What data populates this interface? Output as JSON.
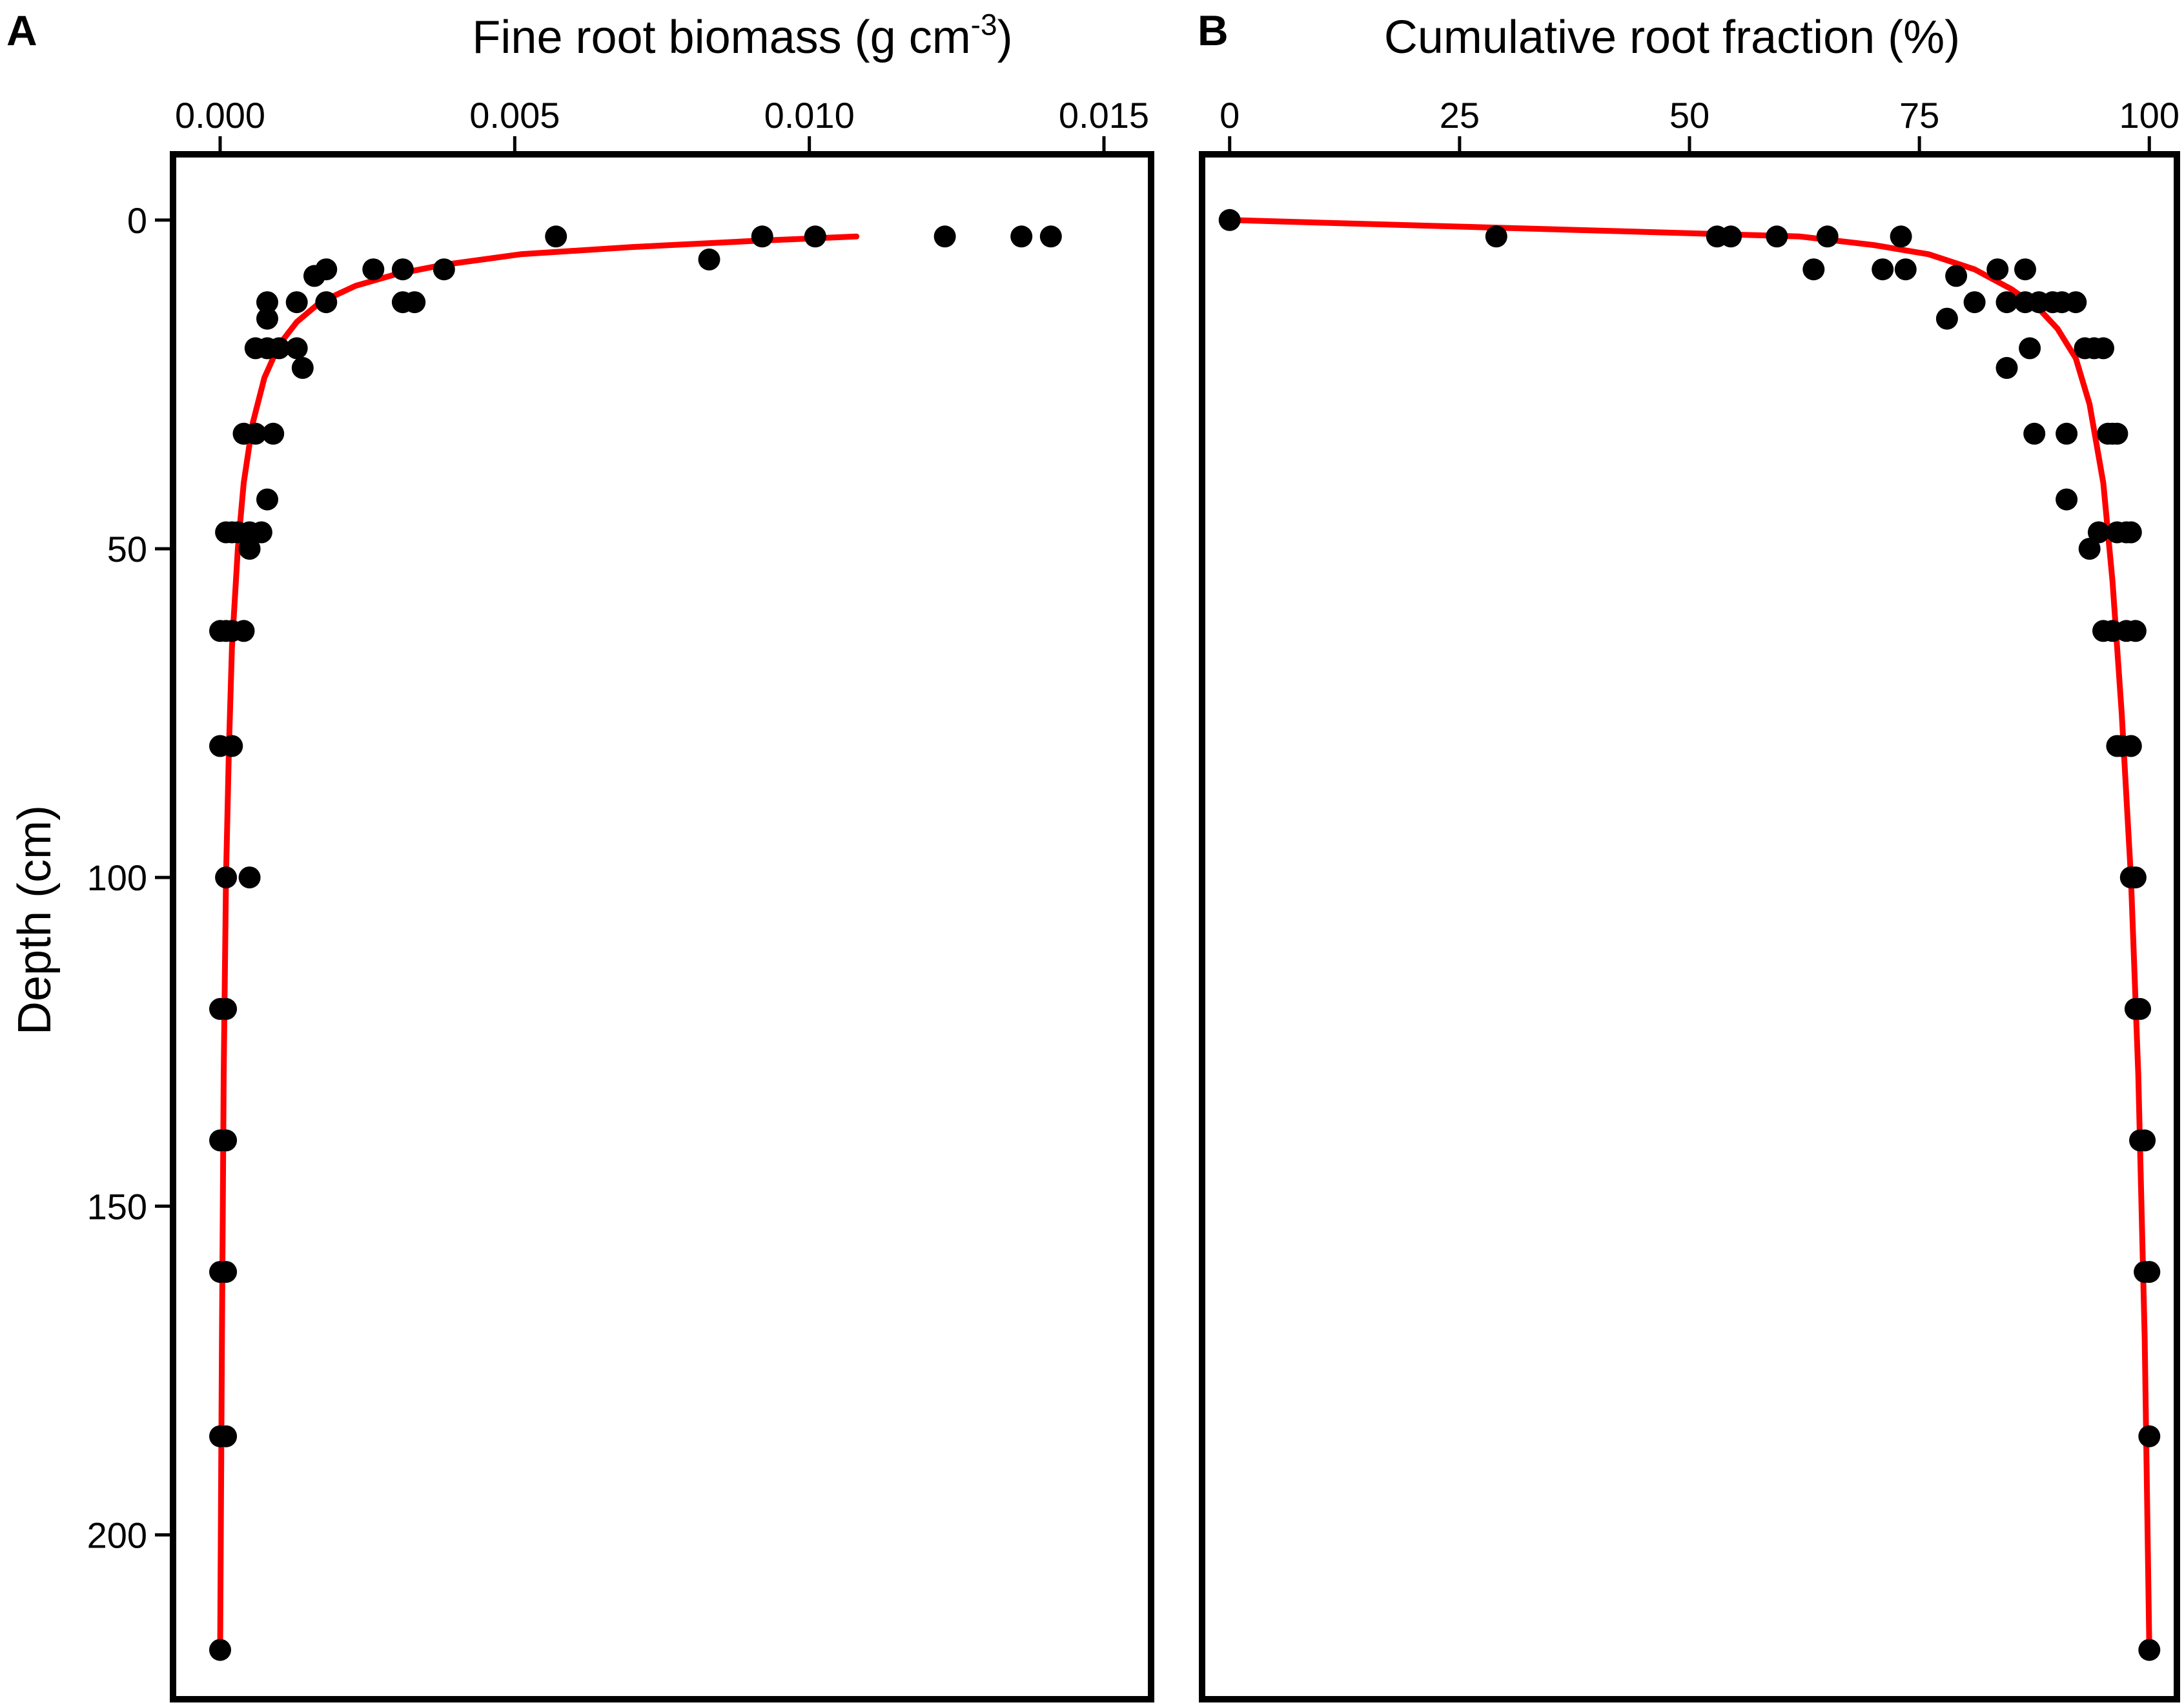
{
  "chart_data": [
    {
      "panel_label": "A",
      "type": "scatter",
      "xlabel": "Fine root biomass (g cm-3)",
      "xlabel_main": "Fine root biomass (g cm",
      "xlabel_sup": "-3",
      "xlabel_close": ")",
      "ylabel": "Depth (cm)",
      "xlim": [
        -0.0008,
        0.0158
      ],
      "ylim": [
        -10,
        225
      ],
      "y_reversed": true,
      "x_axis_position": "top",
      "x_ticks": [
        0,
        0.005,
        0.01,
        0.015
      ],
      "x_tick_labels": [
        "0.000",
        "0.005",
        "0.010",
        "0.015"
      ],
      "y_ticks": [
        0,
        50,
        100,
        150,
        200
      ],
      "y_tick_labels": [
        "0",
        "50",
        "100",
        "150",
        "200"
      ],
      "grid": false,
      "series": [
        {
          "kind": "points",
          "color": "#000000",
          "points": [
            [
              0.0057,
              2.5
            ],
            [
              0.0092,
              2.5
            ],
            [
              0.0101,
              2.5
            ],
            [
              0.0123,
              2.5
            ],
            [
              0.0136,
              2.5
            ],
            [
              0.0141,
              2.5
            ],
            [
              0.0083,
              6
            ],
            [
              0.0038,
              7.5
            ],
            [
              0.0031,
              7.5
            ],
            [
              0.0026,
              7.5
            ],
            [
              0.0018,
              7.5
            ],
            [
              0.0016,
              8.5
            ],
            [
              0.0033,
              12.5
            ],
            [
              0.0031,
              12.5
            ],
            [
              0.0018,
              12.5
            ],
            [
              0.0013,
              12.5
            ],
            [
              0.0008,
              12.5
            ],
            [
              0.0008,
              15
            ],
            [
              0.0013,
              19.5
            ],
            [
              0.001,
              19.5
            ],
            [
              0.0008,
              19.5
            ],
            [
              0.0006,
              19.5
            ],
            [
              0.0014,
              22.5
            ],
            [
              0.0009,
              32.5
            ],
            [
              0.0006,
              32.5
            ],
            [
              0.0004,
              32.5
            ],
            [
              0.0008,
              42.5
            ],
            [
              0.0007,
              47.5
            ],
            [
              0.0005,
              47.5
            ],
            [
              0.0003,
              47.5
            ],
            [
              0.0002,
              47.5
            ],
            [
              0.0001,
              47.5
            ],
            [
              0.0005,
              50
            ],
            [
              0.0004,
              62.5
            ],
            [
              0.0002,
              62.5
            ],
            [
              0.0001,
              62.5
            ],
            [
              0.0,
              62.5
            ],
            [
              0.0002,
              80
            ],
            [
              0.0,
              80
            ],
            [
              0.0005,
              100
            ],
            [
              0.0001,
              100
            ],
            [
              0.0001,
              120
            ],
            [
              0.0,
              120
            ],
            [
              0.0001,
              140
            ],
            [
              0.0,
              140
            ],
            [
              0.0001,
              160
            ],
            [
              0.0,
              160
            ],
            [
              0.0001,
              185
            ],
            [
              0.0,
              185
            ],
            [
              0.0,
              217.5
            ]
          ]
        },
        {
          "kind": "fit-line",
          "color": "#ff0000",
          "points": [
            [
              0.0108,
              2.5
            ],
            [
              0.009,
              3.2
            ],
            [
              0.007,
              4.1
            ],
            [
              0.0051,
              5.2
            ],
            [
              0.0038,
              6.8
            ],
            [
              0.003,
              8.2
            ],
            [
              0.0023,
              10
            ],
            [
              0.0017,
              12.5
            ],
            [
              0.0013,
              15.5
            ],
            [
              0.001,
              19
            ],
            [
              0.00075,
              24
            ],
            [
              0.00055,
              31
            ],
            [
              0.0004,
              40
            ],
            [
              0.0003,
              50
            ],
            [
              0.0002,
              65
            ],
            [
              0.00015,
              80
            ],
            [
              0.0001,
              100
            ],
            [
              6e-05,
              130
            ],
            [
              3e-05,
              170
            ],
            [
              0.0,
              217.5
            ]
          ]
        }
      ]
    },
    {
      "panel_label": "B",
      "type": "scatter",
      "xlabel": "Cumulative root fraction (%)",
      "ylabel": "",
      "xlim": [
        -3,
        103
      ],
      "ylim": [
        -10,
        225
      ],
      "y_reversed": true,
      "x_axis_position": "top",
      "x_ticks": [
        0,
        25,
        50,
        75,
        100
      ],
      "x_tick_labels": [
        "0",
        "25",
        "50",
        "75",
        "100"
      ],
      "grid": false,
      "series": [
        {
          "kind": "points",
          "color": "#000000",
          "points": [
            [
              0,
              0
            ],
            [
              29,
              2.5
            ],
            [
              53,
              2.5
            ],
            [
              54.5,
              2.5
            ],
            [
              59.5,
              2.5
            ],
            [
              65,
              2.5
            ],
            [
              73,
              2.5
            ],
            [
              63.5,
              7.5
            ],
            [
              71,
              7.5
            ],
            [
              73.5,
              7.5
            ],
            [
              79,
              8.5
            ],
            [
              83.5,
              7.5
            ],
            [
              86.5,
              7.5
            ],
            [
              81,
              12.5
            ],
            [
              84.5,
              12.5
            ],
            [
              86.5,
              12.5
            ],
            [
              88,
              12.5
            ],
            [
              89.5,
              12.5
            ],
            [
              90.5,
              12.5
            ],
            [
              92,
              12.5
            ],
            [
              78,
              15
            ],
            [
              87,
              19.5
            ],
            [
              93,
              19.5
            ],
            [
              94,
              19.5
            ],
            [
              95,
              19.5
            ],
            [
              84.5,
              22.5
            ],
            [
              87.5,
              32.5
            ],
            [
              91,
              32.5
            ],
            [
              95.5,
              32.5
            ],
            [
              96,
              32.5
            ],
            [
              96.5,
              32.5
            ],
            [
              91,
              42.5
            ],
            [
              94.5,
              47.5
            ],
            [
              96.5,
              47.5
            ],
            [
              97.5,
              47.5
            ],
            [
              98,
              47.5
            ],
            [
              93.5,
              50
            ],
            [
              95,
              62.5
            ],
            [
              96,
              62.5
            ],
            [
              97.5,
              62.5
            ],
            [
              98.5,
              62.5
            ],
            [
              96.5,
              80
            ],
            [
              97,
              80
            ],
            [
              98,
              80
            ],
            [
              98,
              100
            ],
            [
              98.5,
              100
            ],
            [
              98.5,
              120
            ],
            [
              99,
              120
            ],
            [
              99,
              140
            ],
            [
              99.5,
              140
            ],
            [
              99.5,
              160
            ],
            [
              100,
              160
            ],
            [
              100,
              185
            ],
            [
              100,
              217.5
            ]
          ]
        },
        {
          "kind": "fit-line",
          "color": "#ff0000",
          "points": [
            [
              0,
              0
            ],
            [
              50,
              2
            ],
            [
              62,
              2.5
            ],
            [
              70,
              3.8
            ],
            [
              76,
              5.2
            ],
            [
              81,
              7.5
            ],
            [
              85,
              10.5
            ],
            [
              88,
              13.5
            ],
            [
              90,
              16.5
            ],
            [
              92,
              21
            ],
            [
              93.5,
              28
            ],
            [
              95,
              40
            ],
            [
              96,
              55
            ],
            [
              97,
              75
            ],
            [
              98,
              100
            ],
            [
              98.8,
              130
            ],
            [
              99.5,
              170
            ],
            [
              100,
              217.5
            ]
          ]
        }
      ]
    }
  ]
}
